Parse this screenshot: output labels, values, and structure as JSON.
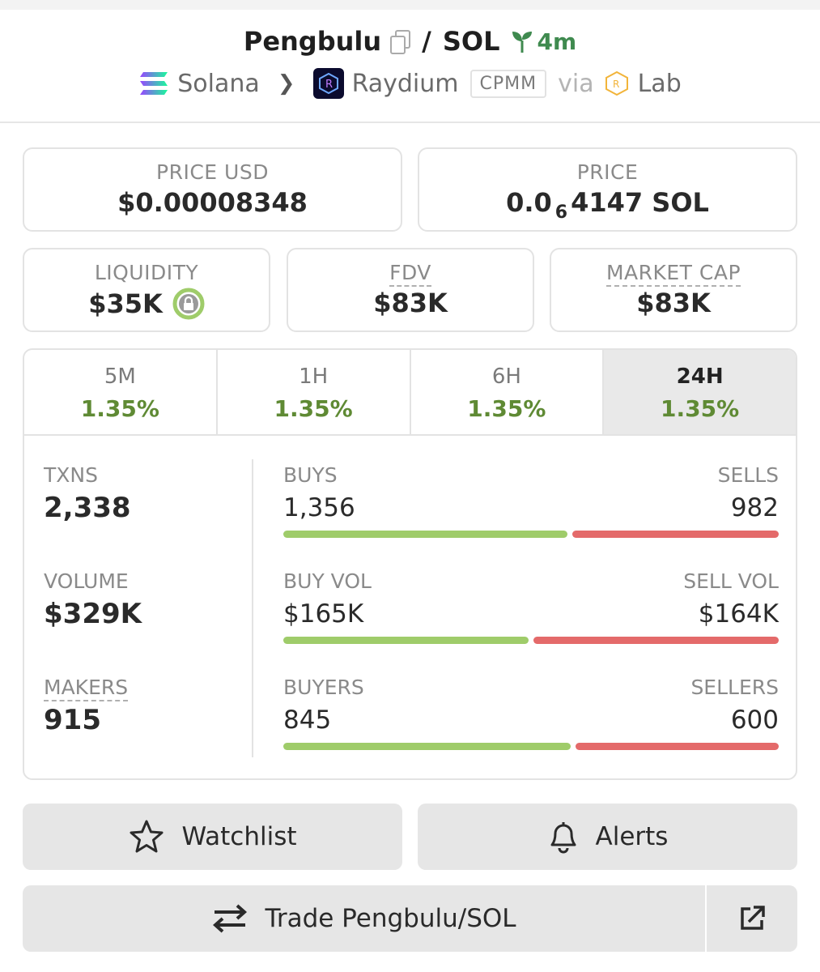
{
  "header": {
    "token_name": "Pengbulu",
    "separator": "/",
    "quote": "SOL",
    "age": "4m",
    "chain": "Solana",
    "dex": "Raydium",
    "pool_type": "CPMM",
    "via": "via",
    "launchpad": "Lab"
  },
  "prices": {
    "usd_label": "PRICE USD",
    "usd_value": "$0.00008348",
    "native_label": "PRICE",
    "native_prefix": "0.0",
    "native_zeros": "6",
    "native_rest": "4147 SOL"
  },
  "metrics": {
    "liquidity_label": "LIQUIDITY",
    "liquidity_value": "$35K",
    "fdv_label": "FDV",
    "fdv_value": "$83K",
    "mcap_label": "MARKET CAP",
    "mcap_value": "$83K"
  },
  "tabs": [
    {
      "label": "5M",
      "value": "1.35%"
    },
    {
      "label": "1H",
      "value": "1.35%"
    },
    {
      "label": "6H",
      "value": "1.35%"
    },
    {
      "label": "24H",
      "value": "1.35%"
    }
  ],
  "stats": {
    "txns_label": "TXNS",
    "txns_value": "2,338",
    "volume_label": "VOLUME",
    "volume_value": "$329K",
    "makers_label": "MAKERS",
    "makers_value": "915",
    "buys_label": "BUYS",
    "buys_value": "1,356",
    "buys_share": 0.58,
    "sells_label": "SELLS",
    "sells_value": "982",
    "buyvol_label": "BUY VOL",
    "buyvol_value": "$165K",
    "buyvol_share": 0.5,
    "sellvol_label": "SELL VOL",
    "sellvol_value": "$164K",
    "buyers_label": "BUYERS",
    "buyers_value": "845",
    "buyers_share": 0.585,
    "sellers_label": "SELLERS",
    "sellers_value": "600"
  },
  "actions": {
    "watchlist": "Watchlist",
    "alerts": "Alerts",
    "trade": "Trade Pengbulu/SOL"
  },
  "colors": {
    "positive": "#5f8a34",
    "buy_bar": "#9fcc6a",
    "sell_bar": "#e46a6a",
    "age": "#3f8a4f"
  }
}
